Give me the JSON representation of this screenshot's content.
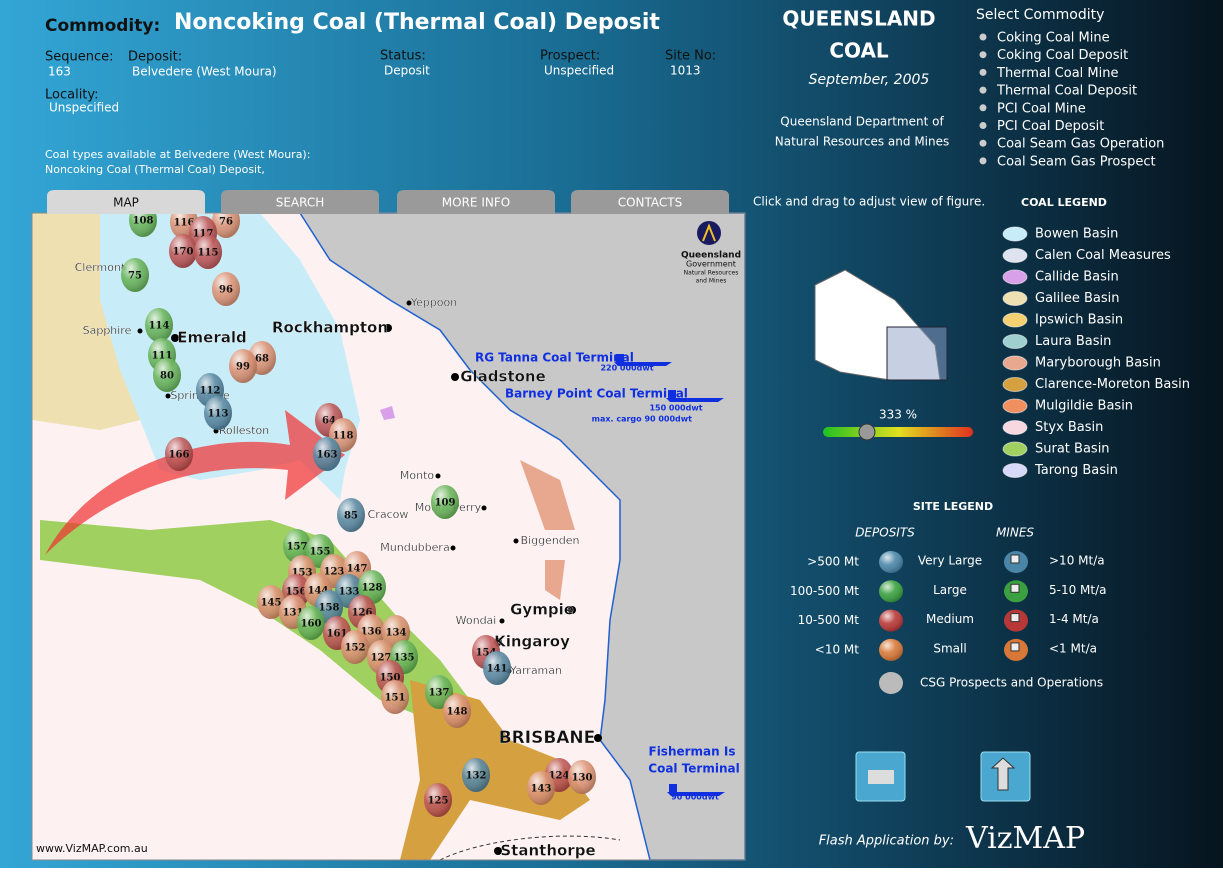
{
  "header": {
    "commodity_label": "Commodity:",
    "commodity": "Noncoking Coal (Thermal Coal) Deposit",
    "fields": [
      {
        "label": "Sequence:",
        "value": "163"
      },
      {
        "label": "Deposit:",
        "value": "Belvedere (West Moura)"
      },
      {
        "label": "Status:",
        "value": "Deposit"
      },
      {
        "label": "Prospect:",
        "value": "Unspecified"
      },
      {
        "label": "Site No:",
        "value": "1013"
      },
      {
        "label": "Locality:",
        "value": "Unspecified"
      }
    ],
    "coal_types_label": "Coal types available at Belvedere (West Moura):",
    "coal_types": "Noncoking Coal (Thermal Coal) Deposit,"
  },
  "brand": {
    "title_line1": "QUEENSLAND",
    "title_line2": "COAL",
    "date": "September, 2005",
    "dept_line1": "Queensland Department of",
    "dept_line2": "Natural Resources and Mines"
  },
  "select_commodity": {
    "title": "Select Commodity",
    "items": [
      "Coking Coal Mine",
      "Coking Coal Deposit",
      "Thermal Coal Mine",
      "Thermal Coal Deposit",
      "PCI Coal Mine",
      "PCI Coal Deposit",
      "Coal Seam Gas Operation",
      "Coal Seam Gas Prospect"
    ]
  },
  "tabs": [
    "MAP",
    "SEARCH",
    "MORE INFO",
    "CONTACTS"
  ],
  "hint": "Click and drag to adjust view of figure.",
  "zoom_label": "333 %",
  "coal_legend": {
    "title": "COAL LEGEND",
    "items": [
      {
        "name": "Bowen Basin",
        "color": "#c8ecf8"
      },
      {
        "name": "Calen Coal Measures",
        "color": "#dfe3f0"
      },
      {
        "name": "Callide Basin",
        "color": "#d8a0e8"
      },
      {
        "name": "Galilee Basin",
        "color": "#eee0b0"
      },
      {
        "name": "Ipswich Basin",
        "color": "#f5d070"
      },
      {
        "name": "Laura Basin",
        "color": "#9ed0d0"
      },
      {
        "name": "Maryborough Basin",
        "color": "#e8a890"
      },
      {
        "name": "Clarence-Moreton Basin",
        "color": "#d4a040"
      },
      {
        "name": "Mulgildie Basin",
        "color": "#f09060"
      },
      {
        "name": "Styx Basin",
        "color": "#f8d8e0"
      },
      {
        "name": "Surat Basin",
        "color": "#a0d060"
      },
      {
        "name": "Tarong Basin",
        "color": "#d8d8f8"
      }
    ]
  },
  "site_legend": {
    "title": "SITE LEGEND",
    "deposits": "DEPOSITS",
    "mines": "MINES",
    "rows": [
      {
        "size": ">500 Mt",
        "deposit": "Very Large",
        "mine": ">10 Mt/a",
        "color": "#4a86a8"
      },
      {
        "size": "100-500 Mt",
        "deposit": "Large",
        "mine": "5-10 Mt/a",
        "color": "#3aa040"
      },
      {
        "size": "10-500 Mt",
        "deposit": "Medium",
        "mine": "1-4 Mt/a",
        "color": "#b83838"
      },
      {
        "size": "<10 Mt",
        "deposit": "Small",
        "mine": "<1 Mt/a",
        "color": "#d87838"
      }
    ],
    "csg": "CSG Prospects and Operations"
  },
  "map": {
    "places": [
      "Clermont",
      "Emerald",
      "Sapphire",
      "Springsure",
      "Rolleston",
      "Rockhampton",
      "Yeppoon",
      "Gladstone",
      "Monto",
      "Mount Perry",
      "Cracow",
      "Mundubbera",
      "Biggenden",
      "Gympie",
      "Wondai",
      "Kingaroy",
      "Yarraman",
      "BRISBANE",
      "Stanthorpe"
    ],
    "terminals": [
      "RG Tanna Coal Terminal",
      "220 000dwt",
      "Barney Point  Coal Terminal",
      "150 000dwt",
      "max. cargo 90 000dwt",
      "Fisherman Is",
      "Coal Terminal",
      "90 000dwt"
    ],
    "sites": [
      "108",
      "116",
      "76",
      "117",
      "170",
      "115",
      "75",
      "96",
      "114",
      "111",
      "80",
      "68",
      "99",
      "112",
      "113",
      "64",
      "118",
      "163",
      "166",
      "109",
      "85",
      "157",
      "155",
      "153",
      "123",
      "147",
      "156",
      "144",
      "133",
      "128",
      "145",
      "131",
      "158",
      "126",
      "160",
      "161",
      "136",
      "134",
      "152",
      "127",
      "135",
      "150",
      "151",
      "137",
      "148",
      "154",
      "141",
      "132",
      "124",
      "130",
      "143",
      "125"
    ],
    "logo": [
      "Queensland",
      "Government",
      "Natural Resources",
      "and Mines"
    ],
    "credit": "www.VizMAP.com.au"
  },
  "footer": {
    "credit": "Flash Application by:",
    "brand": "VizMAP"
  }
}
